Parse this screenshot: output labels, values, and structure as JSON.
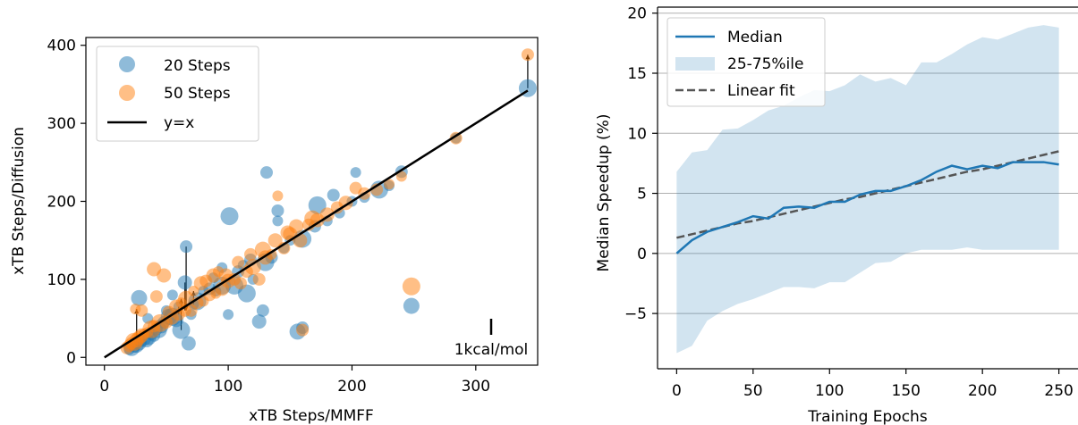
{
  "chart_data": [
    {
      "type": "scatter",
      "title": "",
      "xlabel": "xTB Steps/MMFF",
      "ylabel": "xTB Steps/Diffusion",
      "xlim": [
        -15,
        350
      ],
      "ylim": [
        -10,
        410
      ],
      "xticks": [
        0,
        100,
        200,
        300
      ],
      "yticks": [
        0,
        100,
        200,
        300,
        400
      ],
      "grid": false,
      "legend_position": "top-left",
      "scale_bar_label": "1kcal/mol",
      "series": [
        {
          "name": "20 Steps",
          "color": "#1f77b4",
          "points": [
            [
              342,
              345
            ],
            [
              284,
              281
            ],
            [
              248,
              66
            ],
            [
              240,
              238
            ],
            [
              230,
              220
            ],
            [
              222,
              215
            ],
            [
              203,
              237
            ],
            [
              185,
              208
            ],
            [
              172,
              195
            ],
            [
              160,
              38
            ],
            [
              156,
              33
            ],
            [
              150,
              150
            ],
            [
              145,
              140
            ],
            [
              140,
              175
            ],
            [
              140,
              188
            ],
            [
              131,
              237
            ],
            [
              128,
              60
            ],
            [
              125,
              46
            ],
            [
              120,
              100
            ],
            [
              118,
              125
            ],
            [
              112,
              118
            ],
            [
              108,
              110
            ],
            [
              101,
              181
            ],
            [
              100,
              55
            ],
            [
              95,
              92
            ],
            [
              90,
              85
            ],
            [
              85,
              88
            ],
            [
              80,
              85
            ],
            [
              75,
              72
            ],
            [
              70,
              55
            ],
            [
              68,
              18
            ],
            [
              66,
              142
            ],
            [
              65,
              96
            ],
            [
              60,
              65
            ],
            [
              58,
              48
            ],
            [
              55,
              52
            ],
            [
              52,
              52
            ],
            [
              50,
              60
            ],
            [
              48,
              45
            ],
            [
              46,
              40
            ],
            [
              44,
              35
            ],
            [
              42,
              36
            ],
            [
              40,
              28
            ],
            [
              38,
              30
            ],
            [
              36,
              25
            ],
            [
              34,
              22
            ],
            [
              32,
              24
            ],
            [
              30,
              20
            ],
            [
              28,
              18
            ],
            [
              26,
              15
            ],
            [
              24,
              14
            ],
            [
              22,
              12
            ],
            [
              20,
              10
            ],
            [
              28,
              76
            ],
            [
              35,
              50
            ],
            [
              55,
              80
            ],
            [
              62,
              35
            ],
            [
              72,
              68
            ],
            [
              88,
              102
            ],
            [
              95,
              115
            ],
            [
              105,
              92
            ],
            [
              115,
              82
            ],
            [
              135,
              128
            ],
            [
              160,
              152
            ],
            [
              170,
              168
            ],
            [
              180,
              175
            ],
            [
              190,
              185
            ],
            [
              200,
              200
            ],
            [
              210,
              205
            ],
            [
              130,
              122
            ]
          ]
        },
        {
          "name": "50 Steps",
          "color": "#ff7f0e",
          "points": [
            [
              342,
              388
            ],
            [
              248,
              91
            ],
            [
              284,
              281
            ],
            [
              240,
              232
            ],
            [
              230,
              222
            ],
            [
              220,
              215
            ],
            [
              210,
              210
            ],
            [
              203,
              217
            ],
            [
              195,
              198
            ],
            [
              188,
              192
            ],
            [
              180,
              183
            ],
            [
              172,
              176
            ],
            [
              165,
              170
            ],
            [
              160,
              35
            ],
            [
              158,
              150
            ],
            [
              150,
              158
            ],
            [
              145,
              140
            ],
            [
              140,
              207
            ],
            [
              135,
              132
            ],
            [
              130,
              128
            ],
            [
              125,
              100
            ],
            [
              120,
              116
            ],
            [
              115,
              110
            ],
            [
              110,
              95
            ],
            [
              105,
              100
            ],
            [
              100,
              98
            ],
            [
              95,
              88
            ],
            [
              90,
              82
            ],
            [
              85,
              80
            ],
            [
              80,
              72
            ],
            [
              75,
              70
            ],
            [
              70,
              60
            ],
            [
              65,
              60
            ],
            [
              60,
              55
            ],
            [
              55,
              50
            ],
            [
              50,
              45
            ],
            [
              45,
              44
            ],
            [
              40,
              113
            ],
            [
              40,
              40
            ],
            [
              38,
              36
            ],
            [
              35,
              32
            ],
            [
              32,
              30
            ],
            [
              30,
              28
            ],
            [
              28,
              25
            ],
            [
              26,
              22
            ],
            [
              24,
              20
            ],
            [
              22,
              18
            ],
            [
              20,
              15
            ],
            [
              18,
              12
            ],
            [
              25,
              62
            ],
            [
              30,
              60
            ],
            [
              42,
              78
            ],
            [
              48,
              105
            ],
            [
              52,
              58
            ],
            [
              58,
              65
            ],
            [
              62,
              70
            ],
            [
              66,
              75
            ],
            [
              72,
              85
            ],
            [
              78,
              95
            ],
            [
              82,
              98
            ],
            [
              88,
              105
            ],
            [
              92,
              110
            ],
            [
              98,
              105
            ],
            [
              108,
              122
            ],
            [
              118,
              132
            ],
            [
              128,
              138
            ],
            [
              138,
              150
            ],
            [
              148,
              160
            ],
            [
              155,
              168
            ],
            [
              168,
              178
            ]
          ]
        },
        {
          "name": "y=x",
          "color": "#000000",
          "line": [
            [
              0,
              0
            ],
            [
              342,
              342
            ]
          ]
        }
      ]
    },
    {
      "type": "line",
      "title": "",
      "xlabel": "Training Epochs",
      "ylabel": "Median Speedup (%)",
      "xlim": [
        -12.5,
        262.5
      ],
      "ylim": [
        -9.6,
        20.5
      ],
      "xticks": [
        0,
        50,
        100,
        150,
        200,
        250
      ],
      "yticks": [
        -5,
        0,
        5,
        10,
        15,
        20
      ],
      "grid": "horizontal",
      "legend_position": "top-left",
      "x": [
        0,
        10,
        20,
        30,
        40,
        50,
        60,
        70,
        80,
        90,
        100,
        110,
        120,
        130,
        140,
        150,
        160,
        170,
        180,
        190,
        200,
        210,
        220,
        230,
        240,
        250
      ],
      "series": [
        {
          "name": "Median",
          "color": "#1f77b4",
          "values": [
            0.0,
            1.1,
            1.8,
            2.2,
            2.6,
            3.1,
            2.9,
            3.8,
            3.9,
            3.8,
            4.3,
            4.3,
            4.9,
            5.2,
            5.2,
            5.6,
            6.1,
            6.8,
            7.3,
            7.0,
            7.3,
            7.1,
            7.6,
            7.6,
            7.6,
            7.4
          ]
        },
        {
          "name": "25-75%ile",
          "color": "#cfe1ef",
          "lower": [
            -8.3,
            -7.7,
            -5.6,
            -4.8,
            -4.2,
            -3.8,
            -3.3,
            -2.8,
            -2.8,
            -2.9,
            -2.4,
            -2.4,
            -1.6,
            -0.8,
            -0.7,
            0.0,
            0.3,
            0.3,
            0.3,
            0.5,
            0.3,
            0.3,
            0.3,
            0.3,
            0.3,
            0.3
          ],
          "upper": [
            6.8,
            8.4,
            8.6,
            10.3,
            10.4,
            11.1,
            11.9,
            12.3,
            13.0,
            13.6,
            13.5,
            14.0,
            14.9,
            14.3,
            14.6,
            14.0,
            15.9,
            15.9,
            16.6,
            17.4,
            18.0,
            17.8,
            18.3,
            18.8,
            19.0,
            18.8
          ]
        },
        {
          "name": "Linear fit",
          "color": "#555555",
          "values": [
            1.3,
            1.6,
            1.9,
            2.2,
            2.5,
            2.7,
            3.0,
            3.3,
            3.6,
            3.9,
            4.2,
            4.5,
            4.7,
            5.0,
            5.3,
            5.6,
            5.9,
            6.2,
            6.5,
            6.8,
            7.0,
            7.3,
            7.6,
            7.9,
            8.2,
            8.5
          ]
        }
      ]
    }
  ]
}
